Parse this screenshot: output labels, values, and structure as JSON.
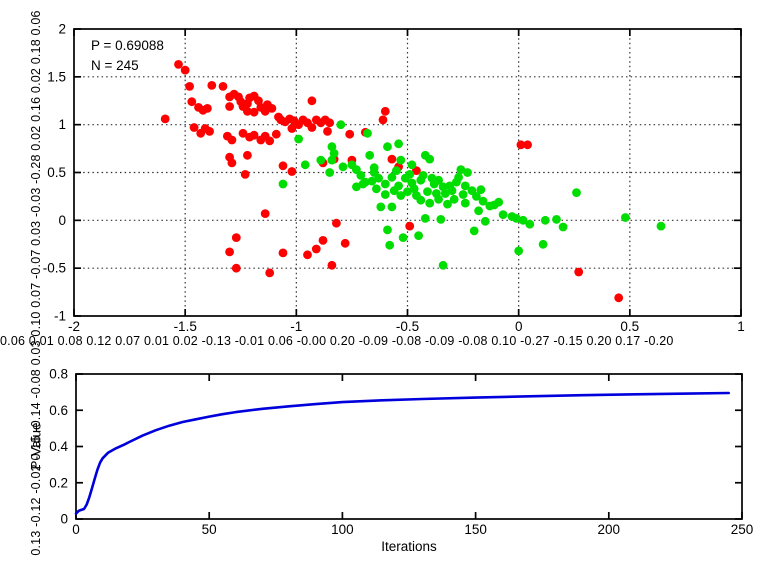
{
  "figure": {
    "background": "#ffffff"
  },
  "colors": {
    "red": "#ff0000",
    "green": "#00dd00",
    "blue": "#0000dd",
    "axis": "#000000",
    "grid": "#333333",
    "text": "#000000"
  },
  "chart_data": [
    {
      "type": "scatter",
      "xlabel": "0.06 0.01 0.08 0.12 0.07 0.01 0.02 -0.13 -0.01 0.06 -0.00 0.20 -0.09 -0.08 -0.09 -0.08 0.10 -0.27 -0.15 0.20 0.17 -0.20",
      "ylabel": "0.13 -0.12 -0.02 0.15 -0.14 -0.08 0.03 0.10 0.07 -0.07 0.03 -0.03 -0.28 0.02 0.16 0.02 0.18 0.06",
      "xlim": [
        -2,
        1
      ],
      "ylim": [
        -1,
        2
      ],
      "xticks": [
        -2,
        -1.5,
        -1,
        -0.5,
        0,
        0.5,
        1
      ],
      "yticks": [
        -1,
        -0.5,
        0,
        0.5,
        1,
        1.5,
        2
      ],
      "grid": true,
      "legend": "none",
      "annotation": {
        "line1": "P = 0.69088",
        "line2": "N = 245"
      },
      "series": [
        {
          "name": "red",
          "color": "#ff0000",
          "marker": "dot",
          "points": [
            [
              -1.53,
              1.63
            ],
            [
              -1.5,
              1.57
            ],
            [
              -1.48,
              1.4
            ],
            [
              -1.38,
              1.41
            ],
            [
              -1.33,
              1.4
            ],
            [
              -1.47,
              1.24
            ],
            [
              -1.44,
              1.18
            ],
            [
              -1.42,
              1.15
            ],
            [
              -1.4,
              1.17
            ],
            [
              -1.3,
              1.29
            ],
            [
              -1.28,
              1.32
            ],
            [
              -1.26,
              1.29
            ],
            [
              -1.25,
              1.24
            ],
            [
              -1.3,
              1.19
            ],
            [
              -1.24,
              1.19
            ],
            [
              -1.22,
              1.22
            ],
            [
              -1.21,
              1.28
            ],
            [
              -1.19,
              1.3
            ],
            [
              -1.17,
              1.25
            ],
            [
              -1.22,
              1.14
            ],
            [
              -1.19,
              1.13
            ],
            [
              -1.16,
              1.18
            ],
            [
              -1.14,
              1.14
            ],
            [
              -1.13,
              1.21
            ],
            [
              -1.11,
              1.17
            ],
            [
              -1.59,
              1.06
            ],
            [
              -1.46,
              0.97
            ],
            [
              -1.43,
              0.91
            ],
            [
              -1.41,
              0.96
            ],
            [
              -1.39,
              0.93
            ],
            [
              -1.31,
              0.88
            ],
            [
              -1.29,
              0.84
            ],
            [
              -1.24,
              0.91
            ],
            [
              -1.21,
              0.87
            ],
            [
              -1.19,
              0.89
            ],
            [
              -1.16,
              0.84
            ],
            [
              -1.14,
              0.88
            ],
            [
              -1.12,
              0.83
            ],
            [
              -1.09,
              0.9
            ],
            [
              -1.08,
              1.08
            ],
            [
              -1.07,
              1.05
            ],
            [
              -1.05,
              1.03
            ],
            [
              -1.03,
              1.06
            ],
            [
              -1.01,
              1.04
            ],
            [
              -0.99,
              1.0
            ],
            [
              -0.97,
              1.05
            ],
            [
              -0.95,
              1.02
            ],
            [
              -0.93,
              0.97
            ],
            [
              -0.91,
              1.05
            ],
            [
              -0.89,
              1.02
            ],
            [
              -0.93,
              1.25
            ],
            [
              -0.87,
              1.05
            ],
            [
              -0.85,
              1.02
            ],
            [
              -1.02,
              0.96
            ],
            [
              -0.86,
              0.93
            ],
            [
              -0.76,
              0.9
            ],
            [
              -0.69,
              0.92
            ],
            [
              -0.6,
              1.14
            ],
            [
              -0.61,
              1.05
            ],
            [
              -1.22,
              0.68
            ],
            [
              -1.3,
              0.66
            ],
            [
              -1.29,
              0.6
            ],
            [
              -1.06,
              0.57
            ],
            [
              -1.02,
              0.51
            ],
            [
              -1.23,
              0.48
            ],
            [
              -0.88,
              0.6
            ],
            [
              -0.83,
              0.64
            ],
            [
              -0.75,
              0.63
            ],
            [
              -0.57,
              0.64
            ],
            [
              -0.54,
              0.56
            ],
            [
              -0.46,
              0.52
            ],
            [
              -1.14,
              0.07
            ],
            [
              -1.27,
              -0.18
            ],
            [
              -1.3,
              -0.33
            ],
            [
              -1.27,
              -0.5
            ],
            [
              -1.12,
              -0.55
            ],
            [
              -1.06,
              -0.34
            ],
            [
              -0.95,
              -0.36
            ],
            [
              -0.91,
              -0.3
            ],
            [
              -0.88,
              -0.21
            ],
            [
              -0.82,
              -0.03
            ],
            [
              -0.84,
              -0.47
            ],
            [
              -0.78,
              -0.24
            ],
            [
              -0.49,
              -0.06
            ],
            [
              0.01,
              0.79
            ],
            [
              0.04,
              0.79
            ],
            [
              0.27,
              -0.54
            ],
            [
              0.45,
              -0.81
            ]
          ]
        },
        {
          "name": "green",
          "color": "#00dd00",
          "marker": "dot",
          "points": [
            [
              -0.99,
              0.85
            ],
            [
              -0.8,
              1.0
            ],
            [
              -0.68,
              0.91
            ],
            [
              -1.06,
              0.38
            ],
            [
              -0.96,
              0.58
            ],
            [
              -0.84,
              0.77
            ],
            [
              -0.83,
              0.7
            ],
            [
              -0.84,
              0.63
            ],
            [
              -0.89,
              0.63
            ],
            [
              -0.85,
              0.5
            ],
            [
              -0.79,
              0.56
            ],
            [
              -0.75,
              0.58
            ],
            [
              -0.73,
              0.53
            ],
            [
              -0.71,
              0.47
            ],
            [
              -0.69,
              0.4
            ],
            [
              -0.73,
              0.35
            ],
            [
              -0.67,
              0.68
            ],
            [
              -0.65,
              0.55
            ],
            [
              -0.65,
              0.5
            ],
            [
              -0.63,
              0.44
            ],
            [
              -0.59,
              0.77
            ],
            [
              -0.54,
              0.8
            ],
            [
              -0.53,
              0.63
            ],
            [
              -0.55,
              0.52
            ],
            [
              -0.51,
              0.44
            ],
            [
              -0.49,
              0.48
            ],
            [
              -0.57,
              0.45
            ],
            [
              -0.48,
              0.58
            ],
            [
              -0.42,
              0.68
            ],
            [
              -0.4,
              0.64
            ],
            [
              -0.44,
              0.42
            ],
            [
              -0.54,
              0.36
            ],
            [
              -0.48,
              0.39
            ],
            [
              -0.38,
              0.38
            ],
            [
              -0.34,
              0.35
            ],
            [
              -0.31,
              0.36
            ],
            [
              -0.41,
              0.3
            ],
            [
              -0.37,
              0.28
            ],
            [
              -0.46,
              0.26
            ],
            [
              -0.53,
              0.26
            ],
            [
              -0.6,
              0.27
            ],
            [
              -0.62,
              0.14
            ],
            [
              -0.57,
              0.14
            ],
            [
              -0.47,
              0.33
            ],
            [
              -0.43,
              0.47
            ],
            [
              -0.39,
              0.44
            ],
            [
              -0.36,
              0.42
            ],
            [
              -0.33,
              0.28
            ],
            [
              -0.3,
              0.31
            ],
            [
              -0.29,
              0.22
            ],
            [
              -0.32,
              0.17
            ],
            [
              -0.36,
              0.22
            ],
            [
              -0.4,
              0.18
            ],
            [
              -0.44,
              0.21
            ],
            [
              -0.5,
              0.3
            ],
            [
              -0.56,
              0.31
            ],
            [
              -0.6,
              0.38
            ],
            [
              -0.64,
              0.33
            ],
            [
              -0.66,
              0.41
            ],
            [
              -0.7,
              0.38
            ],
            [
              -0.26,
              0.53
            ],
            [
              -0.23,
              0.5
            ],
            [
              -0.27,
              0.45
            ],
            [
              -0.24,
              0.36
            ],
            [
              -0.25,
              0.27
            ],
            [
              -0.28,
              0.4
            ],
            [
              -0.21,
              0.31
            ],
            [
              -0.19,
              0.25
            ],
            [
              -0.24,
              0.18
            ],
            [
              -0.17,
              0.32
            ],
            [
              -0.18,
              0.1
            ],
            [
              -0.16,
              0.2
            ],
            [
              -0.13,
              0.15
            ],
            [
              -0.15,
              -0.01
            ],
            [
              -0.2,
              -0.11
            ],
            [
              -0.09,
              0.19
            ],
            [
              -0.11,
              0.16
            ],
            [
              -0.07,
              0.06
            ],
            [
              -0.03,
              0.04
            ],
            [
              -0.01,
              0.02
            ],
            [
              0.02,
              0.0
            ],
            [
              0.05,
              -0.04
            ],
            [
              -0.42,
              0.02
            ],
            [
              -0.35,
              0.01
            ],
            [
              -0.45,
              -0.16
            ],
            [
              -0.52,
              -0.18
            ],
            [
              -0.59,
              -0.1
            ],
            [
              -0.58,
              -0.26
            ],
            [
              -0.34,
              -0.47
            ],
            [
              0.0,
              -0.32
            ],
            [
              0.11,
              -0.25
            ],
            [
              0.12,
              0.0
            ],
            [
              0.17,
              0.01
            ],
            [
              0.2,
              -0.07
            ],
            [
              0.26,
              0.29
            ],
            [
              0.48,
              0.03
            ],
            [
              0.64,
              -0.06
            ]
          ]
        }
      ]
    },
    {
      "type": "line",
      "xlabel": "Iterations",
      "ylabel": "P-Value",
      "xlim": [
        0,
        250
      ],
      "ylim": [
        0,
        0.8
      ],
      "xticks": [
        0,
        50,
        100,
        150,
        200,
        250
      ],
      "yticks": [
        0,
        0.2,
        0.4,
        0.6,
        0.8
      ],
      "grid": false,
      "legend": "none",
      "series": [
        {
          "name": "p-value",
          "color": "#0000dd",
          "x": [
            0,
            1,
            2,
            3,
            4,
            5,
            6,
            7,
            8,
            9,
            10,
            12,
            15,
            18,
            20,
            25,
            30,
            35,
            40,
            45,
            50,
            55,
            60,
            70,
            80,
            90,
            100,
            115,
            130,
            150,
            170,
            190,
            210,
            230,
            245
          ],
          "y": [
            0.03,
            0.045,
            0.05,
            0.055,
            0.08,
            0.12,
            0.17,
            0.22,
            0.27,
            0.31,
            0.335,
            0.365,
            0.39,
            0.41,
            0.425,
            0.46,
            0.49,
            0.515,
            0.535,
            0.55,
            0.565,
            0.578,
            0.59,
            0.608,
            0.622,
            0.634,
            0.645,
            0.655,
            0.662,
            0.67,
            0.677,
            0.683,
            0.688,
            0.692,
            0.695
          ]
        }
      ]
    }
  ]
}
